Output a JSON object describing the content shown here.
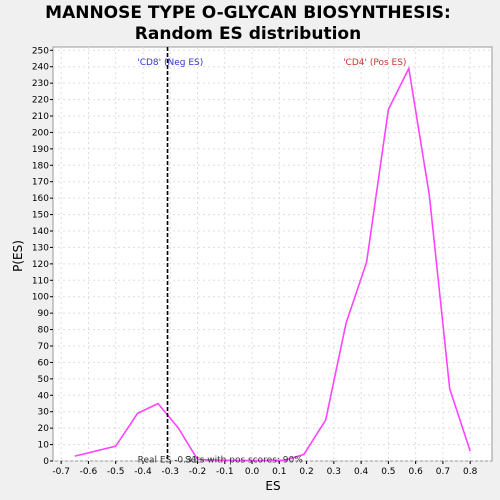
{
  "chart_data": {
    "type": "line",
    "title": "MANNOSE TYPE O-GLYCAN BIOSYNTHESIS:",
    "subtitle": "Random ES distribution",
    "xlabel": "ES",
    "ylabel": "P(ES)",
    "xlim": [
      -0.73,
      0.88
    ],
    "ylim": [
      0,
      252
    ],
    "xticks": [
      -0.7,
      -0.6,
      -0.5,
      -0.4,
      -0.3,
      -0.2,
      -0.1,
      0.0,
      0.1,
      0.2,
      0.3,
      0.4,
      0.5,
      0.6,
      0.7,
      0.8
    ],
    "xtick_labels": [
      "-0.7",
      "-0.6",
      "-0.5",
      "-0.4",
      "-0.3",
      "-0.2",
      "-0.1",
      "0.0",
      "0.1",
      "0.2",
      "0.3",
      "0.4",
      "0.5",
      "0.6",
      "0.7",
      "0.8"
    ],
    "yticks": [
      0,
      10,
      20,
      30,
      40,
      50,
      60,
      70,
      80,
      90,
      100,
      110,
      120,
      130,
      140,
      150,
      160,
      170,
      180,
      190,
      200,
      210,
      220,
      230,
      240,
      250
    ],
    "grid": true,
    "series": [
      {
        "color": "#ff44ff",
        "x": [
          -0.65,
          -0.5,
          -0.42,
          -0.345,
          -0.27,
          -0.2,
          -0.12,
          -0.05,
          0.05,
          0.12,
          0.19,
          0.27,
          0.345,
          0.42,
          0.5,
          0.575,
          0.65,
          0.725,
          0.8
        ],
        "y": [
          3,
          9,
          29,
          35,
          20,
          1,
          0.5,
          0.3,
          0.3,
          0.5,
          4,
          25,
          84,
          121,
          214,
          239,
          162,
          44,
          6
        ]
      }
    ],
    "vline": {
      "x": -0.31,
      "style": "dashed",
      "color": "#000000"
    },
    "annotations": [
      {
        "text": "'CD8' (Neg ES)",
        "color": "#3333cc",
        "x": -0.3,
        "y": 243
      },
      {
        "text": "'CD4' (Pos ES)",
        "color": "#cc3333",
        "x": 0.45,
        "y": 243
      },
      {
        "text": "Real ES -0.31",
        "color": "#333333",
        "x": -0.31,
        "y": 1
      },
      {
        "text": "Sets with pos scores: 90%",
        "color": "#333333",
        "x": -0.03,
        "y": 1
      }
    ],
    "colors": {
      "plot_bg": "#ffffff",
      "page_bg": "#f0f0f0",
      "grid": "#dddddd"
    }
  }
}
